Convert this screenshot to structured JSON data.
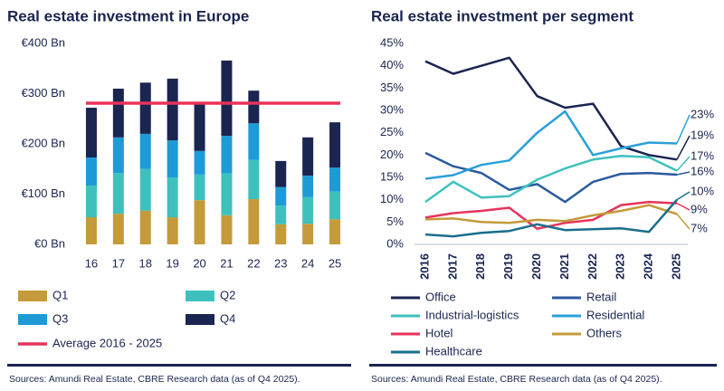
{
  "chart_data": [
    {
      "type": "stacked-bar",
      "title": "Real estate investment in Europe",
      "categories": [
        "16",
        "17",
        "18",
        "19",
        "20",
        "21",
        "22",
        "23",
        "24",
        "25"
      ],
      "series": [
        {
          "name": "Q1",
          "color": "#c49a3a",
          "values": [
            54,
            61,
            67,
            54,
            88,
            58,
            90,
            40,
            41,
            50
          ]
        },
        {
          "name": "Q2",
          "color": "#3ec1bd",
          "values": [
            63,
            81,
            83,
            79,
            51,
            83,
            78,
            37,
            53,
            55
          ]
        },
        {
          "name": "Q3",
          "color": "#1e9ad6",
          "values": [
            56,
            71,
            70,
            74,
            47,
            75,
            73,
            37,
            43,
            48
          ]
        },
        {
          "name": "Q4",
          "color": "#1a2550",
          "values": [
            99,
            97,
            102,
            123,
            93,
            150,
            65,
            52,
            76,
            90
          ]
        }
      ],
      "reference_line": {
        "name": "Average 2016 - 2025",
        "value": 281,
        "color": "#e8335a"
      },
      "ylim": [
        0,
        400
      ],
      "yticks": [
        {
          "value": 0,
          "label": "€0 Bn"
        },
        {
          "value": 100,
          "label": "€100 Bn"
        },
        {
          "value": 200,
          "label": "€200 Bn"
        },
        {
          "value": 300,
          "label": "€300 Bn"
        },
        {
          "value": 400,
          "label": "€400 Bn"
        }
      ],
      "grid": false,
      "source": "Sources: Amundi Real Estate, CBRE Research data (as of Q4 2025)."
    },
    {
      "type": "line",
      "title": "Real estate investment per segment",
      "categories": [
        "2016",
        "2017",
        "2018",
        "2019",
        "2020",
        "2021",
        "2022",
        "2023",
        "2024",
        "2025"
      ],
      "series": [
        {
          "name": "Office",
          "color": "#1a2550",
          "values": [
            41,
            38.2,
            40,
            41.8,
            33.2,
            30.6,
            31.5,
            22,
            20,
            19
          ],
          "end_label": "19%"
        },
        {
          "name": "Retail",
          "color": "#2a5a9e",
          "values": [
            20.5,
            17.5,
            16,
            12.2,
            13.5,
            9.5,
            14,
            15.8,
            16,
            15.6
          ],
          "end_label": "16%"
        },
        {
          "name": "Industrial-logistics",
          "color": "#3ec1bd",
          "values": [
            9.5,
            14,
            10.5,
            10.8,
            14.5,
            17,
            19,
            19.8,
            19.5,
            16.5
          ],
          "end_label": "17%"
        },
        {
          "name": "Residential",
          "color": "#2aa0d8",
          "values": [
            14.7,
            15.5,
            17.8,
            18.8,
            25,
            29.8,
            20,
            21.5,
            22.8,
            22.6
          ],
          "end_label": "23%"
        },
        {
          "name": "Hotel",
          "color": "#e8335a",
          "values": [
            6,
            7,
            7.5,
            8.2,
            3.5,
            4.8,
            5.5,
            8.8,
            9.5,
            9.2
          ],
          "end_label": "9%"
        },
        {
          "name": "Others",
          "color": "#c49a3a",
          "values": [
            5.6,
            5.8,
            5,
            4.8,
            5.5,
            5.2,
            6.5,
            7.5,
            8.8,
            6.8
          ],
          "end_label": "7%"
        },
        {
          "name": "Healthcare",
          "color": "#1a6e8a",
          "values": [
            2.2,
            1.8,
            2.6,
            3,
            4.5,
            3.2,
            3.4,
            3.6,
            2.8,
            10
          ],
          "end_label": "10%"
        }
      ],
      "ylim": [
        0,
        45
      ],
      "yticks": [
        {
          "value": 0,
          "label": "0%"
        },
        {
          "value": 5,
          "label": "5%"
        },
        {
          "value": 10,
          "label": "10%"
        },
        {
          "value": 15,
          "label": "15%"
        },
        {
          "value": 20,
          "label": "20%"
        },
        {
          "value": 25,
          "label": "25%"
        },
        {
          "value": 30,
          "label": "30%"
        },
        {
          "value": 35,
          "label": "35%"
        },
        {
          "value": 40,
          "label": "40%"
        },
        {
          "value": 45,
          "label": "45%"
        }
      ],
      "grid": false,
      "source": "Sources: Amundi Real Estate, CBRE Research data (as of Q4 2025)."
    }
  ]
}
